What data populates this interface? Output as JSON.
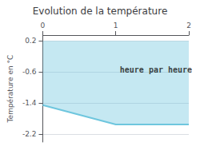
{
  "chart_data": {
    "type": "area",
    "title": "Evolution de la température",
    "ylabel": "Température en °C",
    "x": [
      0,
      1,
      2
    ],
    "values": [
      -1.45,
      -1.95,
      -1.95
    ],
    "fill_top": [
      0.2,
      0.2,
      0.2
    ],
    "color": "#6ec6de",
    "xlim": [
      0,
      2
    ],
    "ylim": [
      -2.4,
      0.35
    ],
    "xticks": [
      0,
      1,
      2
    ],
    "yticks": [
      0.2,
      -0.6,
      -1.4,
      -2.2
    ],
    "grid": true,
    "annotations": [
      {
        "text": "heure par heure",
        "x": 1.55,
        "y": -0.55
      }
    ]
  }
}
